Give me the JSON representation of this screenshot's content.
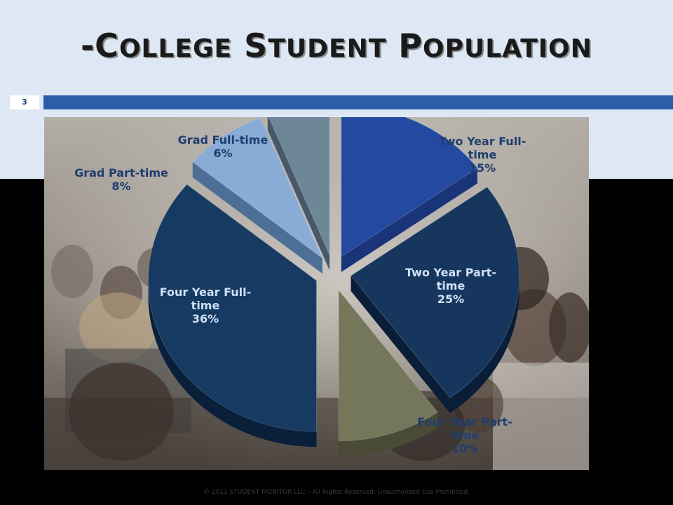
{
  "slide": {
    "title_prefix": "-",
    "title_words": [
      "College",
      "Student",
      "Population"
    ],
    "number": "3",
    "footer": "© 2011 STUDENT MONITOR LLC – All Rights Reserved. Unauthorized Use Prohibited."
  },
  "colors": {
    "header_bg": "#dde8f4",
    "accent_bar": "#2b5ea7",
    "label_text": "#1f3e6e",
    "inside_label_text": "#cfe0f5"
  },
  "chart_data": {
    "type": "pie",
    "title": "",
    "style": "3d-exploded",
    "categories": [
      "Two Year Full-time",
      "Two Year Part-time",
      "Four Year Part-time",
      "Four Year Full-time",
      "Grad Part-time",
      "Grad Full-time"
    ],
    "values": [
      15,
      25,
      10,
      36,
      8,
      6
    ],
    "value_suffix": "%",
    "slices": [
      {
        "label_lines": [
          "Two Year Full-",
          "time"
        ],
        "value_text": "15%",
        "color": "#2449a0",
        "side_color": "#1a347a"
      },
      {
        "label_lines": [
          "Two Year Part-",
          "time"
        ],
        "value_text": "25%",
        "color": "#16365e",
        "side_color": "#0b1e38"
      },
      {
        "label_lines": [
          "Four Year Part-",
          "time"
        ],
        "value_text": "10%",
        "color": "#75775a",
        "side_color": "#4a4b36"
      },
      {
        "label_lines": [
          "Four Year Full-",
          "time"
        ],
        "value_text": "36%",
        "color": "#163a62",
        "side_color": "#0a1f3a"
      },
      {
        "label_lines": [
          "Grad Part-time"
        ],
        "value_text": "8%",
        "color": "#88acd6",
        "side_color": "#4d6f96"
      },
      {
        "label_lines": [
          "Grad Full-time"
        ],
        "value_text": "6%",
        "color": "#6e8797",
        "side_color": "#46586a"
      }
    ]
  }
}
